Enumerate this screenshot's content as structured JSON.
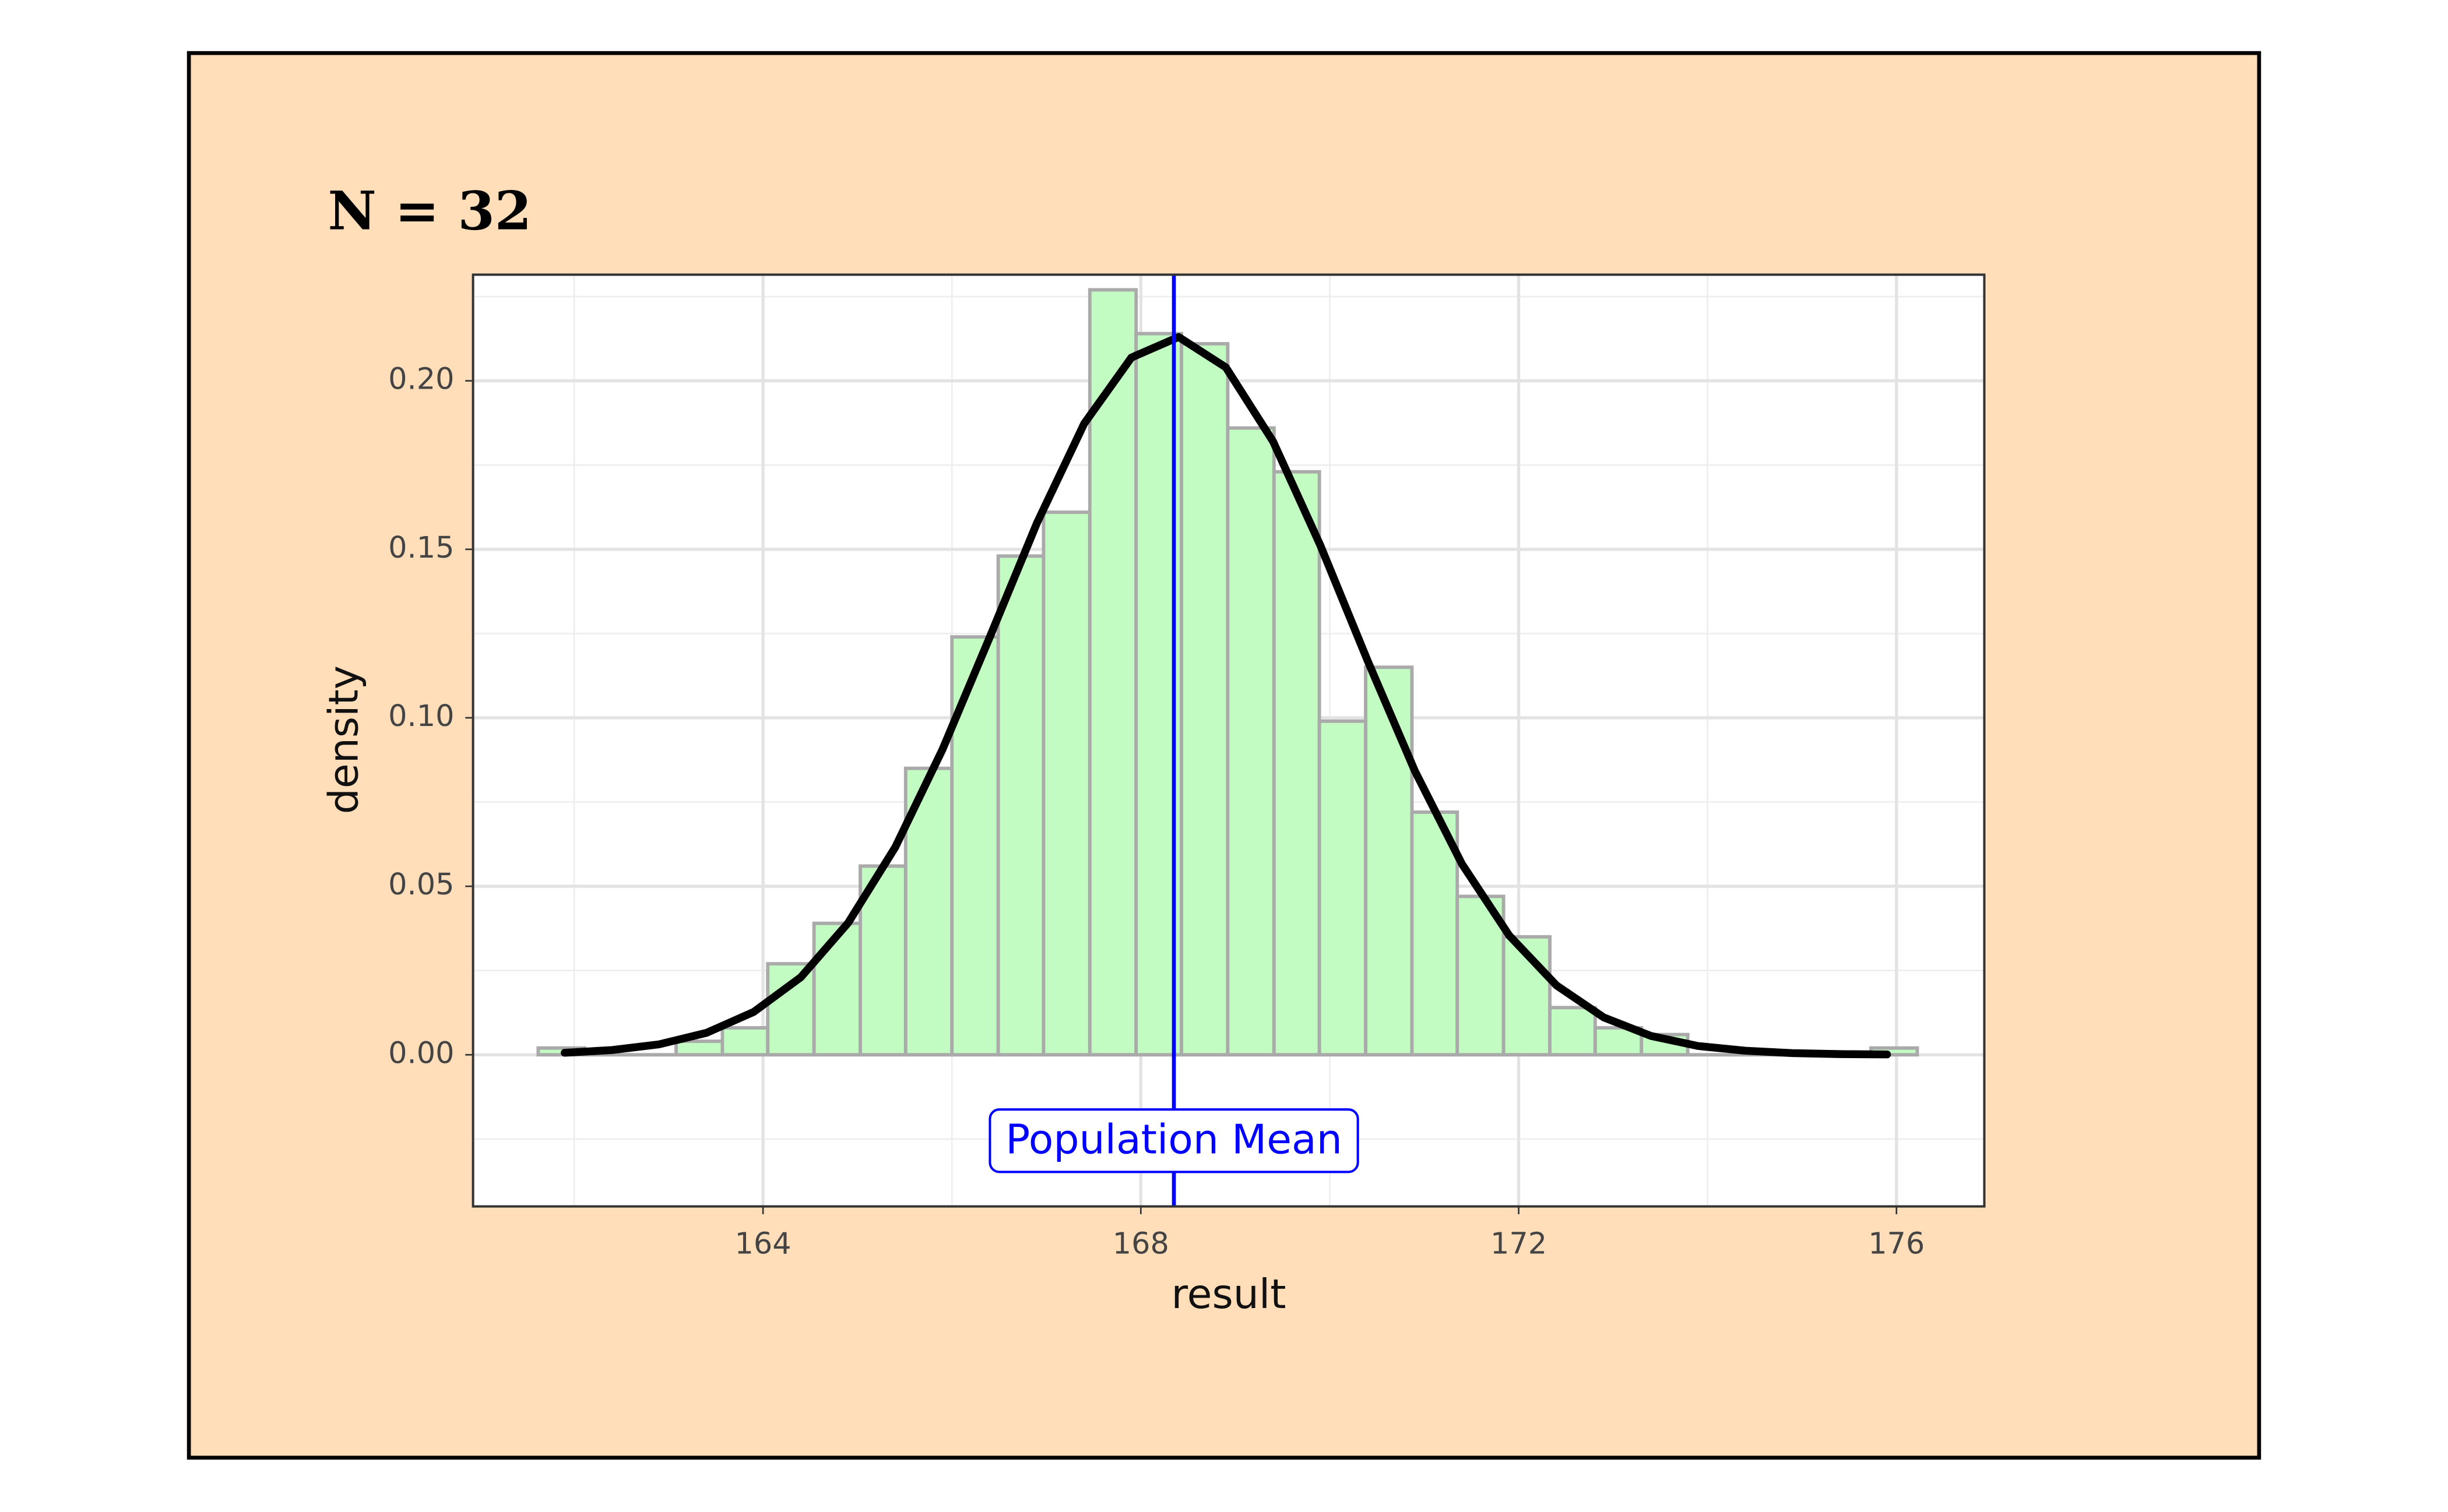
{
  "chart_data": {
    "type": "histogram",
    "title": "N = 32",
    "xlabel": "result",
    "ylabel": "density",
    "bins": [
      161.62,
      162.11,
      162.59,
      163.08,
      163.57,
      164.05,
      164.54,
      165.03,
      165.51,
      166.0,
      166.49,
      166.97,
      167.46,
      167.95,
      168.43,
      168.92,
      169.41,
      169.89,
      170.38,
      170.87,
      171.35,
      171.84,
      172.33,
      172.81,
      173.3,
      173.79,
      174.27,
      174.76,
      175.25,
      175.73,
      176.22
    ],
    "values": [
      0.002,
      0,
      0,
      0.004,
      0.008,
      0.027,
      0.039,
      0.056,
      0.085,
      0.124,
      0.148,
      0.161,
      0.227,
      0.214,
      0.211,
      0.186,
      0.173,
      0.099,
      0.115,
      0.072,
      0.047,
      0.035,
      0.014,
      0.008,
      0.006,
      0,
      0,
      0,
      0,
      0.002
    ],
    "color": "#c3fcc3",
    "edge_color": "#aaaaaa",
    "curve": {
      "color": "#000000",
      "x": [
        161.9,
        162.4,
        162.9,
        163.4,
        163.9,
        164.4,
        164.9,
        165.4,
        165.9,
        166.4,
        166.9,
        167.4,
        167.9,
        168.4,
        168.9,
        169.4,
        169.9,
        170.4,
        170.9,
        171.4,
        171.9,
        172.4,
        172.9,
        173.4,
        173.9,
        174.4,
        174.9,
        175.4,
        175.9
      ],
      "values": [
        0.0006,
        0.0014,
        0.0031,
        0.0065,
        0.0127,
        0.023,
        0.0391,
        0.0616,
        0.0906,
        0.1239,
        0.1578,
        0.1873,
        0.2069,
        0.213,
        0.204,
        0.182,
        0.1512,
        0.117,
        0.0843,
        0.0566,
        0.0354,
        0.0206,
        0.0111,
        0.0056,
        0.0026,
        0.0012,
        0.0005,
        0.0002,
        0.0001
      ]
    },
    "mean_line": {
      "x": 168.35,
      "label": "Population Mean",
      "label_y": -0.0255,
      "color": "#0000ff"
    },
    "xlim": [
      160.93,
      176.93
    ],
    "ylim": [
      -0.045,
      0.2315
    ],
    "xticks": [
      164,
      168,
      172,
      176
    ],
    "yticks": [
      {
        "value": 0,
        "label": "0.00"
      },
      {
        "value": 0.05,
        "label": "0.05"
      },
      {
        "value": 0.1,
        "label": "0.10"
      },
      {
        "value": 0.15,
        "label": "0.15"
      },
      {
        "value": 0.2,
        "label": "0.20"
      }
    ],
    "x_minor_ticks": [
      162,
      166,
      170,
      174
    ],
    "y_minor_ticks": [
      -0.025,
      0.025,
      0.075,
      0.125,
      0.175,
      0.225
    ],
    "grid": true,
    "background": "#ffdeb9"
  }
}
